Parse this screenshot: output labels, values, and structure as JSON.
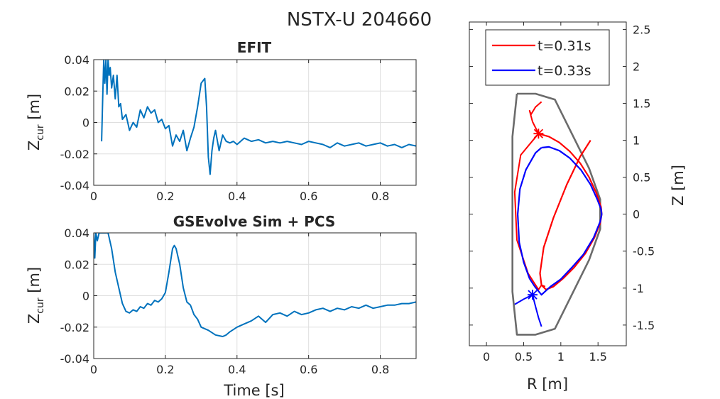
{
  "figure": {
    "title": "NSTX-U 204660"
  },
  "chart_data": [
    {
      "type": "line",
      "title": "EFIT",
      "xlabel": "",
      "ylabel_main": "Z",
      "ylabel_sub": "cur",
      "ylabel_unit": " [m]",
      "xlim": [
        0,
        0.9
      ],
      "ylim": [
        -0.04,
        0.04
      ],
      "xticks": [
        0,
        0.2,
        0.4,
        0.6,
        0.8
      ],
      "yticks": [
        -0.04,
        -0.02,
        0,
        0.02,
        0.04
      ],
      "xtick_labels": [
        "0",
        "0.2",
        "0.4",
        "0.6",
        "0.8"
      ],
      "ytick_labels": [
        "-0.04",
        "-0.02",
        "0",
        "0.02",
        "0.04"
      ],
      "grid": true,
      "series": [
        {
          "name": "Zcur EFIT",
          "color": "#0072BD",
          "x": [
            0.022,
            0.025,
            0.028,
            0.031,
            0.034,
            0.037,
            0.04,
            0.043,
            0.046,
            0.05,
            0.055,
            0.06,
            0.065,
            0.07,
            0.075,
            0.08,
            0.09,
            0.1,
            0.11,
            0.12,
            0.13,
            0.14,
            0.15,
            0.16,
            0.17,
            0.18,
            0.19,
            0.2,
            0.21,
            0.22,
            0.23,
            0.24,
            0.25,
            0.26,
            0.27,
            0.28,
            0.29,
            0.3,
            0.31,
            0.315,
            0.32,
            0.325,
            0.33,
            0.335,
            0.34,
            0.35,
            0.36,
            0.37,
            0.38,
            0.39,
            0.4,
            0.42,
            0.44,
            0.46,
            0.48,
            0.5,
            0.52,
            0.54,
            0.56,
            0.58,
            0.6,
            0.62,
            0.64,
            0.66,
            0.68,
            0.7,
            0.72,
            0.74,
            0.76,
            0.78,
            0.8,
            0.82,
            0.84,
            0.86,
            0.88,
            0.9
          ],
          "y": [
            -0.012,
            0.015,
            0.04,
            0.025,
            0.04,
            0.018,
            0.04,
            0.03,
            0.035,
            0.022,
            0.03,
            0.015,
            0.03,
            0.01,
            0.012,
            0.002,
            0.005,
            -0.005,
            0.0,
            -0.003,
            0.008,
            0.003,
            0.01,
            0.006,
            0.008,
            0.0,
            0.002,
            -0.004,
            -0.002,
            -0.015,
            -0.008,
            -0.012,
            -0.005,
            -0.018,
            -0.01,
            -0.003,
            0.01,
            0.025,
            0.028,
            0.01,
            -0.022,
            -0.033,
            -0.018,
            -0.01,
            -0.005,
            -0.018,
            -0.008,
            -0.012,
            -0.013,
            -0.012,
            -0.014,
            -0.01,
            -0.012,
            -0.011,
            -0.013,
            -0.012,
            -0.013,
            -0.012,
            -0.013,
            -0.014,
            -0.012,
            -0.013,
            -0.014,
            -0.016,
            -0.013,
            -0.015,
            -0.014,
            -0.013,
            -0.015,
            -0.014,
            -0.013,
            -0.015,
            -0.014,
            -0.016,
            -0.014,
            -0.015
          ]
        }
      ]
    },
    {
      "type": "line",
      "title": "GSEvolve Sim + PCS",
      "xlabel": "Time [s]",
      "ylabel_main": "Z",
      "ylabel_sub": "cur",
      "ylabel_unit": " [m]",
      "xlim": [
        0,
        0.9
      ],
      "ylim": [
        -0.04,
        0.04
      ],
      "xticks": [
        0,
        0.2,
        0.4,
        0.6,
        0.8
      ],
      "yticks": [
        -0.04,
        -0.02,
        0,
        0.02,
        0.04
      ],
      "xtick_labels": [
        "0",
        "0.2",
        "0.4",
        "0.6",
        "0.8"
      ],
      "ytick_labels": [
        "-0.04",
        "-0.02",
        "0",
        "0.02",
        "0.04"
      ],
      "grid": true,
      "series": [
        {
          "name": "Zcur GSEvolve",
          "color": "#0072BD",
          "x": [
            0.0,
            0.003,
            0.006,
            0.01,
            0.015,
            0.02,
            0.03,
            0.04,
            0.05,
            0.06,
            0.07,
            0.08,
            0.09,
            0.1,
            0.11,
            0.12,
            0.13,
            0.14,
            0.15,
            0.16,
            0.17,
            0.18,
            0.19,
            0.2,
            0.21,
            0.22,
            0.225,
            0.23,
            0.24,
            0.25,
            0.26,
            0.27,
            0.28,
            0.29,
            0.3,
            0.32,
            0.34,
            0.36,
            0.37,
            0.38,
            0.4,
            0.42,
            0.44,
            0.46,
            0.48,
            0.5,
            0.52,
            0.54,
            0.56,
            0.58,
            0.6,
            0.62,
            0.64,
            0.66,
            0.68,
            0.7,
            0.72,
            0.74,
            0.76,
            0.78,
            0.8,
            0.82,
            0.84,
            0.86,
            0.88,
            0.9
          ],
          "y": [
            0.04,
            0.024,
            0.04,
            0.035,
            0.04,
            0.04,
            0.04,
            0.04,
            0.03,
            0.015,
            0.005,
            -0.005,
            -0.01,
            -0.011,
            -0.009,
            -0.01,
            -0.007,
            -0.008,
            -0.005,
            -0.006,
            -0.003,
            -0.004,
            -0.002,
            0.002,
            0.015,
            0.03,
            0.032,
            0.03,
            0.02,
            0.005,
            -0.004,
            -0.006,
            -0.012,
            -0.015,
            -0.02,
            -0.022,
            -0.025,
            -0.026,
            -0.025,
            -0.023,
            -0.02,
            -0.018,
            -0.016,
            -0.013,
            -0.017,
            -0.012,
            -0.011,
            -0.013,
            -0.01,
            -0.012,
            -0.011,
            -0.009,
            -0.008,
            -0.01,
            -0.008,
            -0.009,
            -0.007,
            -0.008,
            -0.006,
            -0.008,
            -0.007,
            -0.006,
            -0.006,
            -0.005,
            -0.005,
            -0.004
          ]
        }
      ]
    },
    {
      "type": "line",
      "title": "",
      "xlabel": "R [m]",
      "ylabel": "Z [m]",
      "xlim": [
        -0.23,
        1.88
      ],
      "ylim": [
        -1.78,
        2.6
      ],
      "xticks": [
        0,
        0.5,
        1,
        1.5
      ],
      "yticks": [
        -1.5,
        -1,
        -0.5,
        0,
        0.5,
        1,
        1.5,
        2,
        2.5
      ],
      "xtick_labels": [
        "0",
        "0.5",
        "1",
        "1.5"
      ],
      "ytick_labels": [
        "-1.5",
        "-1",
        "-0.5",
        "0",
        "0.5",
        "1",
        "1.5",
        "2",
        "2.5"
      ],
      "grid": false,
      "legend": {
        "location": "top",
        "entries": [
          "t=0.31s",
          "t=0.33s"
        ]
      },
      "series": [
        {
          "name": "vessel wall",
          "color": "#6b6b6b",
          "x": [
            0.41,
            0.66,
            0.92,
            1.38,
            1.53,
            1.53,
            1.38,
            0.92,
            0.66,
            0.41,
            0.35,
            0.35,
            0.41
          ],
          "y": [
            1.63,
            1.63,
            1.55,
            0.62,
            0.2,
            -0.2,
            -0.62,
            -1.55,
            -1.63,
            -1.63,
            -1.05,
            1.05,
            1.63
          ],
          "z": [
            "contour"
          ]
        },
        {
          "name": "t=0.31s",
          "color": "#ff0000",
          "x": [
            0.7,
            0.84,
            0.98,
            1.12,
            1.26,
            1.38,
            1.48,
            1.54,
            1.55,
            1.53,
            1.45,
            1.33,
            1.18,
            1.03,
            0.9,
            0.8,
            0.74,
            0.72,
            0.77,
            0.9,
            1.08,
            1.26,
            1.4
          ],
          "y": [
            1.09,
            1.05,
            0.97,
            0.85,
            0.69,
            0.5,
            0.28,
            0.1,
            0.0,
            -0.12,
            -0.32,
            -0.53,
            -0.72,
            -0.87,
            -0.98,
            -1.02,
            -0.96,
            -0.8,
            -0.45,
            -0.05,
            0.4,
            0.78,
            1.0
          ],
          "xpoint": [
            0.7,
            1.09
          ],
          "leg_a_x": [
            0.7,
            0.62,
            0.58,
            0.6,
            0.66,
            0.74
          ],
          "leg_a_y": [
            1.09,
            1.25,
            1.4,
            1.35,
            1.45,
            1.52
          ],
          "leg_b_x": [
            0.7,
            0.46,
            0.38,
            0.41,
            0.56,
            0.7,
            0.74,
            0.79
          ],
          "leg_b_y": [
            1.09,
            0.8,
            0.3,
            -0.35,
            -0.8,
            -1.02,
            -0.96,
            -0.98
          ]
        },
        {
          "name": "t=0.33s",
          "color": "#0000ff",
          "x": [
            0.74,
            0.84,
            0.98,
            1.12,
            1.27,
            1.4,
            1.49,
            1.54,
            1.55,
            1.53,
            1.44,
            1.3,
            1.15,
            1.0,
            0.86,
            0.74,
            0.65,
            0.58,
            0.5,
            0.44,
            0.42,
            0.45,
            0.53,
            0.66,
            0.74
          ],
          "y": [
            0.9,
            0.91,
            0.86,
            0.76,
            0.6,
            0.4,
            0.2,
            0.07,
            0.0,
            -0.1,
            -0.32,
            -0.55,
            -0.72,
            -0.88,
            -0.98,
            -1.09,
            -0.98,
            -0.87,
            -0.65,
            -0.38,
            0.0,
            0.34,
            0.6,
            0.83,
            0.9
          ],
          "xpoint": [
            0.62,
            -1.09
          ],
          "leg_a_x": [
            0.62,
            0.66,
            0.7,
            0.74
          ],
          "leg_a_y": [
            -1.09,
            -1.25,
            -1.4,
            -1.52
          ],
          "leg_b_x": [
            0.62,
            0.5,
            0.38
          ],
          "leg_b_y": [
            -1.09,
            -1.15,
            -1.22
          ]
        }
      ]
    }
  ]
}
